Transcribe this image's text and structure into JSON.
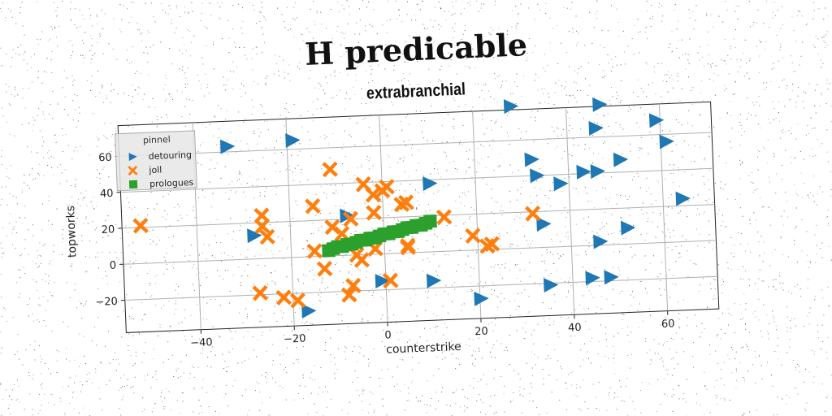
{
  "chart_data": {
    "type": "scatter",
    "title": "H predicable",
    "subtitle": "extrabranchial",
    "xlabel": "counterstrike",
    "ylabel": "topworks",
    "xlim": [
      -56,
      71
    ],
    "ylim": [
      -38,
      77
    ],
    "xticks": [
      -40,
      -20,
      0,
      20,
      40,
      60
    ],
    "yticks": [
      -20,
      0,
      20,
      40,
      60
    ],
    "grid": true,
    "legend_title": "pinnel",
    "legend_position": "top-left",
    "series": [
      {
        "name": "detouring",
        "marker": "triangle-right",
        "color": "#1f77b4",
        "points": [
          [
            -33,
            63
          ],
          [
            -19,
            65
          ],
          [
            -28,
            13
          ],
          [
            -17,
            -30
          ],
          [
            -8,
            22
          ],
          [
            -1,
            -15
          ],
          [
            10,
            38
          ],
          [
            10,
            -16
          ],
          [
            20,
            -27
          ],
          [
            28,
            79
          ],
          [
            32,
            49
          ],
          [
            33,
            40
          ],
          [
            34,
            13
          ],
          [
            35,
            -21
          ],
          [
            38,
            35
          ],
          [
            43,
            41
          ],
          [
            44,
            -18
          ],
          [
            46,
            41
          ],
          [
            46,
            2
          ],
          [
            46,
            65
          ],
          [
            47,
            78
          ],
          [
            48,
            -18
          ],
          [
            51,
            47
          ],
          [
            52,
            9
          ],
          [
            59,
            68
          ],
          [
            61,
            56
          ],
          [
            64,
            24
          ]
        ]
      },
      {
        "name": "joll",
        "marker": "x",
        "color": "#ff7f0e",
        "points": [
          [
            -52,
            21
          ],
          [
            -27,
            -19
          ],
          [
            -26,
            24
          ],
          [
            -26,
            18
          ],
          [
            -25,
            12
          ],
          [
            -22,
            -22
          ],
          [
            -19,
            -24
          ],
          [
            -15,
            28
          ],
          [
            -15,
            3
          ],
          [
            -13,
            -7
          ],
          [
            -11,
            16
          ],
          [
            -11,
            48
          ],
          [
            -9,
            12
          ],
          [
            -8,
            -22
          ],
          [
            -7,
            -17
          ],
          [
            -7,
            20
          ],
          [
            -6,
            0
          ],
          [
            -5,
            -3
          ],
          [
            -4,
            39
          ],
          [
            -2,
            23
          ],
          [
            -2,
            33
          ],
          [
            -2,
            3
          ],
          [
            0,
            35
          ],
          [
            1,
            37
          ],
          [
            1,
            -15
          ],
          [
            4,
            27
          ],
          [
            5,
            28
          ],
          [
            5,
            3
          ],
          [
            5,
            4
          ],
          [
            13,
            19
          ],
          [
            19,
            8
          ],
          [
            22,
            2
          ],
          [
            23,
            3
          ],
          [
            32,
            19
          ]
        ]
      },
      {
        "name": "prologues",
        "marker": "square",
        "color": "#2ca02c",
        "points": [
          [
            -12,
            3
          ],
          [
            -11,
            4
          ],
          [
            -10,
            5
          ],
          [
            -9,
            5
          ],
          [
            -8,
            6
          ],
          [
            -7,
            6
          ],
          [
            -6,
            7
          ],
          [
            -5,
            8
          ],
          [
            -4,
            8
          ],
          [
            -3,
            9
          ],
          [
            -2,
            9
          ],
          [
            -1,
            10
          ],
          [
            0,
            11
          ],
          [
            1,
            11
          ],
          [
            2,
            12
          ],
          [
            3,
            12
          ],
          [
            4,
            13
          ],
          [
            5,
            14
          ],
          [
            6,
            14
          ],
          [
            7,
            15
          ],
          [
            8,
            15
          ],
          [
            9,
            16
          ],
          [
            10,
            17
          ]
        ]
      }
    ]
  }
}
